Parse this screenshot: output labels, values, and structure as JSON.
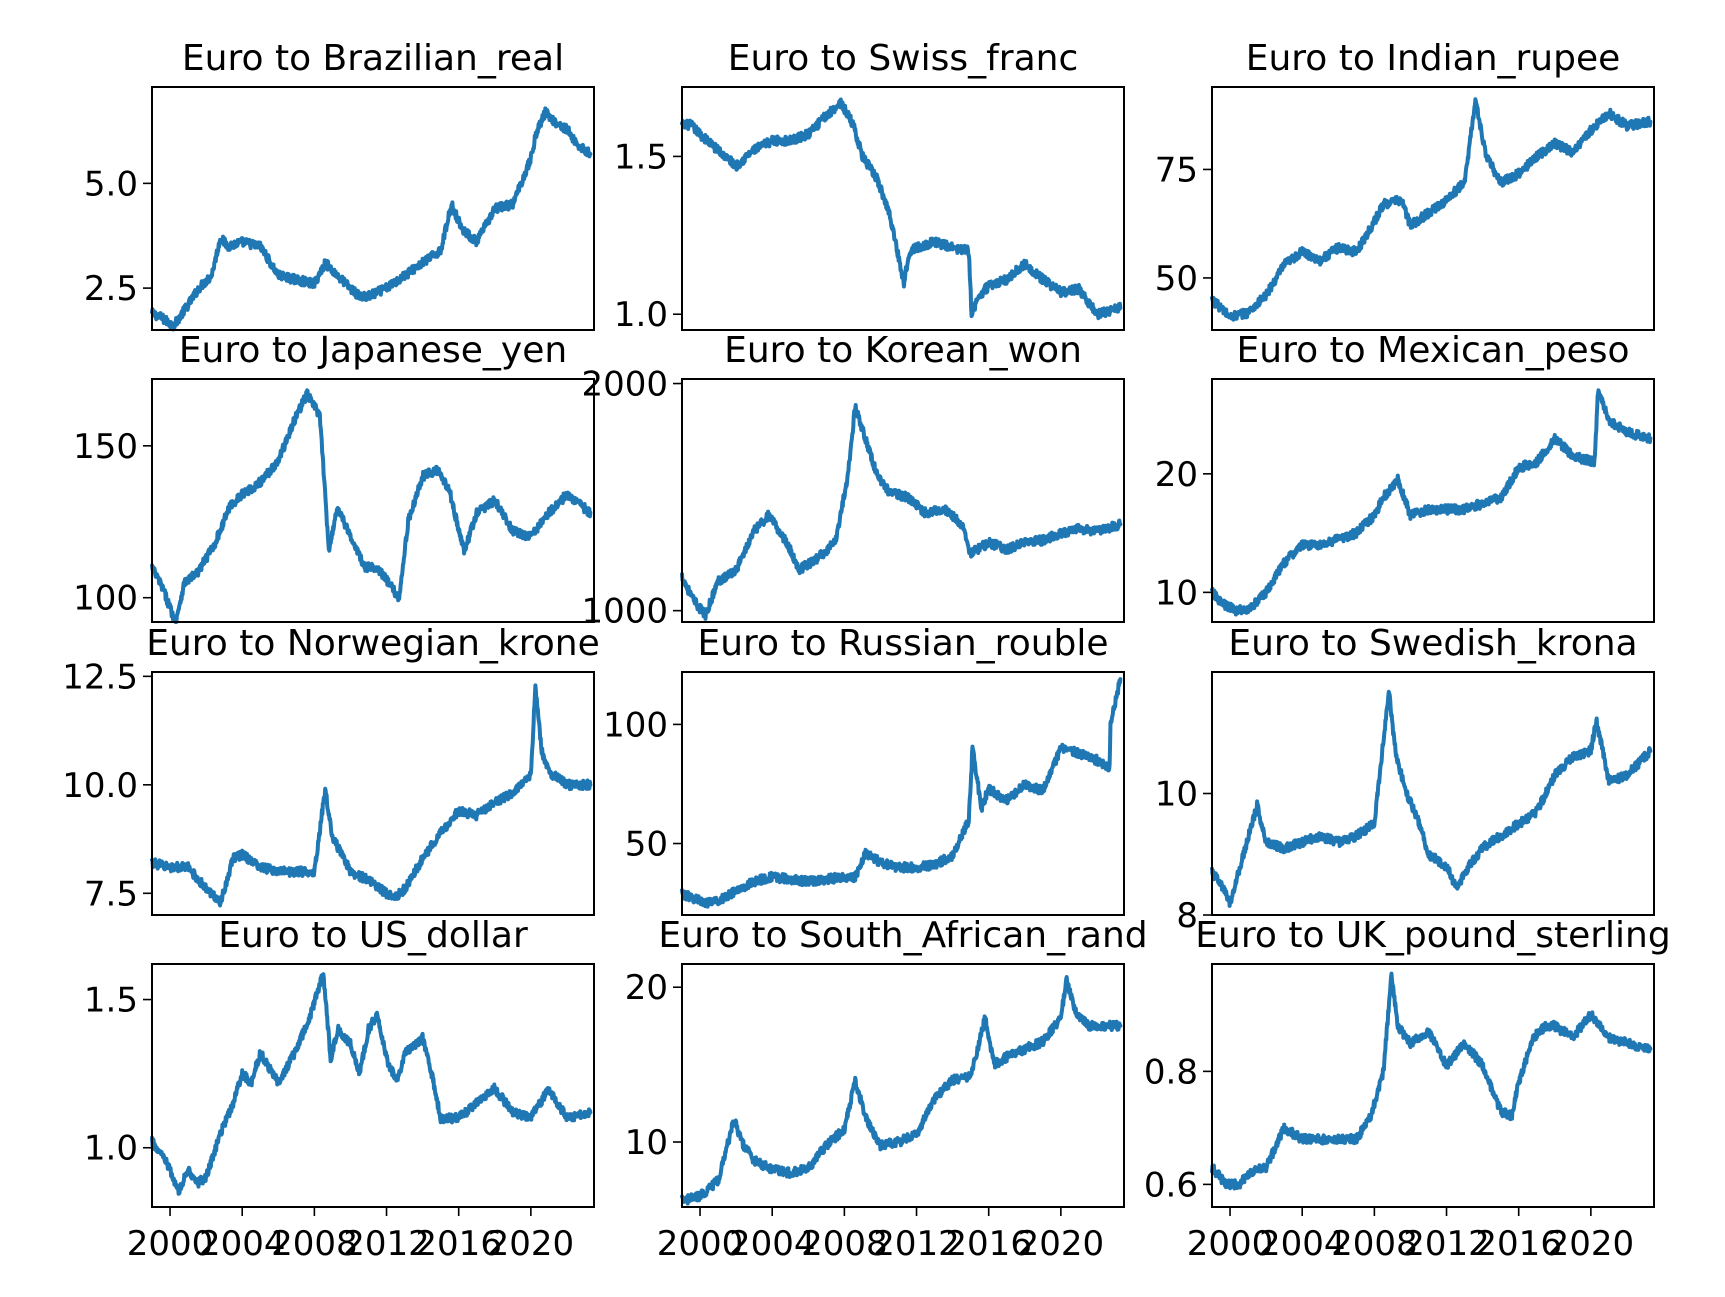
{
  "colors": {
    "series": "#1f77b4",
    "axes": "#000000",
    "background": "#ffffff"
  },
  "x_tick_labels": [
    "2000",
    "2004",
    "2008",
    "2012",
    "2016",
    "2020"
  ],
  "chart_data": [
    {
      "type": "line",
      "title": "Euro to Brazilian_real",
      "x_range": [
        1999,
        2023.5
      ],
      "ylim": [
        1.5,
        7.3
      ],
      "y_ticks": [
        2.5,
        5.0
      ],
      "y_tick_labels": [
        "2.5",
        "5.0"
      ],
      "show_x_ticks": false,
      "series": [
        {
          "x": [
            1999,
            1999.5,
            2000.2,
            2001,
            2001.6,
            2002.3,
            2002.8,
            2003.2,
            2004,
            2005,
            2006,
            2007,
            2008,
            2008.6,
            2009.5,
            2010.5,
            2011,
            2012,
            2013,
            2014,
            2015,
            2015.6,
            2016.2,
            2017,
            2018,
            2019,
            2020,
            2020.3,
            2020.8,
            2021.5,
            2022,
            2022.6,
            2023.3
          ],
          "y": [
            1.9,
            1.8,
            1.6,
            2.1,
            2.5,
            2.8,
            3.7,
            3.5,
            3.6,
            3.5,
            2.8,
            2.7,
            2.6,
            3.1,
            2.7,
            2.3,
            2.3,
            2.5,
            2.8,
            3.1,
            3.4,
            4.5,
            3.9,
            3.6,
            4.4,
            4.5,
            5.6,
            6.2,
            6.7,
            6.4,
            6.3,
            5.9,
            5.7
          ]
        }
      ]
    },
    {
      "type": "line",
      "title": "Euro to Swiss_franc",
      "x_range": [
        1999,
        2023.5
      ],
      "ylim": [
        0.95,
        1.72
      ],
      "y_ticks": [
        1.0,
        1.5
      ],
      "y_tick_labels": [
        "1.0",
        "1.5"
      ],
      "show_x_ticks": false,
      "series": [
        {
          "x": [
            1999,
            1999.5,
            2000,
            2001,
            2002,
            2003,
            2004,
            2005,
            2006,
            2007,
            2007.8,
            2008.5,
            2009,
            2009.8,
            2010.5,
            2011.3,
            2011.6,
            2012,
            2013,
            2014,
            2014.9,
            2015.05,
            2015.5,
            2016,
            2017,
            2018,
            2019,
            2020,
            2021,
            2022,
            2023.3
          ],
          "y": [
            1.6,
            1.6,
            1.57,
            1.52,
            1.47,
            1.52,
            1.55,
            1.55,
            1.57,
            1.63,
            1.67,
            1.6,
            1.5,
            1.43,
            1.32,
            1.1,
            1.2,
            1.21,
            1.23,
            1.21,
            1.2,
            1.0,
            1.06,
            1.09,
            1.11,
            1.16,
            1.11,
            1.07,
            1.08,
            1.0,
            1.02
          ]
        }
      ]
    },
    {
      "type": "line",
      "title": "Euro to Indian_rupee",
      "x_range": [
        1999,
        2023.5
      ],
      "ylim": [
        38,
        94
      ],
      "y_ticks": [
        50,
        75
      ],
      "y_tick_labels": [
        "50",
        "75"
      ],
      "show_x_ticks": false,
      "series": [
        {
          "x": [
            1999,
            1999.5,
            2000,
            2001,
            2002,
            2003,
            2004,
            2005,
            2006,
            2007,
            2008,
            2008.5,
            2009.5,
            2010,
            2011,
            2012,
            2013,
            2013.6,
            2014.2,
            2015,
            2016,
            2017,
            2018,
            2019,
            2020,
            2021,
            2022,
            2023.3
          ],
          "y": [
            45,
            43,
            41,
            42,
            46,
            53,
            56,
            54,
            57,
            56,
            63,
            67,
            68,
            62,
            65,
            68,
            72,
            91,
            78,
            72,
            74,
            78,
            81,
            79,
            84,
            88,
            85,
            86
          ]
        }
      ]
    },
    {
      "type": "line",
      "title": "Euro to Japanese_yen",
      "x_range": [
        1999,
        2023.5
      ],
      "ylim": [
        92,
        172
      ],
      "y_ticks": [
        100,
        150
      ],
      "y_tick_labels": [
        "100",
        "150"
      ],
      "show_x_ticks": false,
      "series": [
        {
          "x": [
            1999,
            1999.6,
            2000.3,
            2000.8,
            2001.5,
            2002.5,
            2003.3,
            2004,
            2005,
            2006,
            2007,
            2007.6,
            2008.3,
            2008.8,
            2009.3,
            2010,
            2010.8,
            2011.5,
            2012.2,
            2012.7,
            2013.2,
            2014,
            2014.8,
            2015.5,
            2016.3,
            2017,
            2018,
            2019,
            2020,
            2021,
            2022,
            2023.3
          ],
          "y": [
            110,
            103,
            92,
            105,
            108,
            118,
            130,
            134,
            138,
            145,
            160,
            167,
            160,
            116,
            130,
            120,
            110,
            110,
            104,
            100,
            125,
            140,
            142,
            135,
            115,
            128,
            132,
            122,
            120,
            128,
            134,
            128
          ]
        }
      ]
    },
    {
      "type": "line",
      "title": "Euro to Korean_won",
      "x_range": [
        1999,
        2023.5
      ],
      "ylim": [
        950,
        2020
      ],
      "y_ticks": [
        1000,
        2000
      ],
      "y_tick_labels": [
        "1000",
        "2000"
      ],
      "show_x_ticks": false,
      "series": [
        {
          "x": [
            1999,
            1999.6,
            2000.3,
            2001,
            2002,
            2003,
            2003.8,
            2004.8,
            2005.5,
            2006.5,
            2007.5,
            2008.2,
            2008.6,
            2009.2,
            2009.8,
            2010.5,
            2011.5,
            2012.5,
            2013.5,
            2014.5,
            2015,
            2016,
            2017,
            2018,
            2019,
            2020,
            2021,
            2022,
            2023.3
          ],
          "y": [
            1150,
            1050,
            980,
            1130,
            1180,
            1350,
            1420,
            1300,
            1180,
            1230,
            1300,
            1600,
            1900,
            1750,
            1600,
            1520,
            1500,
            1430,
            1450,
            1380,
            1250,
            1300,
            1270,
            1300,
            1310,
            1340,
            1360,
            1350,
            1380
          ]
        }
      ]
    },
    {
      "type": "line",
      "title": "Euro to Mexican_peso",
      "x_range": [
        1999,
        2023.5
      ],
      "ylim": [
        7.5,
        28
      ],
      "y_ticks": [
        10,
        20
      ],
      "y_tick_labels": [
        "10",
        "20"
      ],
      "show_x_ticks": false,
      "series": [
        {
          "x": [
            1999,
            1999.6,
            2000.3,
            2001,
            2002,
            2003,
            2004,
            2005,
            2006,
            2007,
            2008,
            2008.5,
            2009.3,
            2010,
            2011,
            2012,
            2013,
            2014,
            2015,
            2016,
            2017,
            2018,
            2019,
            2020.2,
            2020.4,
            2021,
            2022,
            2023.3
          ],
          "y": [
            10,
            9,
            8.5,
            8.5,
            10,
            12.5,
            14,
            14,
            14.5,
            15,
            16.5,
            18,
            19.5,
            16.5,
            17,
            17,
            17,
            17.5,
            18,
            20.5,
            21,
            23,
            21.5,
            21,
            27,
            24.5,
            23.5,
            23
          ]
        }
      ]
    },
    {
      "type": "line",
      "title": "Euro to Norwegian_krone",
      "x_range": [
        1999,
        2023.5
      ],
      "ylim": [
        7.0,
        12.6
      ],
      "y_ticks": [
        7.5,
        10.0,
        12.5
      ],
      "y_tick_labels": [
        "7.5",
        "10.0",
        "12.5"
      ],
      "show_x_ticks": false,
      "series": [
        {
          "x": [
            1999,
            2000,
            2001,
            2002,
            2002.8,
            2003.5,
            2004,
            2005,
            2006,
            2007,
            2008,
            2008.6,
            2009,
            2009.5,
            2010,
            2011,
            2012,
            2012.5,
            2013,
            2014,
            2015,
            2016,
            2017,
            2018,
            2019,
            2020,
            2020.25,
            2020.6,
            2021,
            2022,
            2023.3
          ],
          "y": [
            8.2,
            8.1,
            8.1,
            7.6,
            7.3,
            8.3,
            8.4,
            8.1,
            8.0,
            8.0,
            8.0,
            9.9,
            8.8,
            8.4,
            8.0,
            7.8,
            7.5,
            7.4,
            7.6,
            8.3,
            8.9,
            9.4,
            9.3,
            9.6,
            9.8,
            10.2,
            12.3,
            10.8,
            10.3,
            10.0,
            10.0
          ]
        }
      ]
    },
    {
      "type": "line",
      "title": "Euro to Russian_rouble",
      "x_range": [
        1999,
        2023.5
      ],
      "ylim": [
        20,
        122
      ],
      "y_ticks": [
        50,
        100
      ],
      "y_tick_labels": [
        "50",
        "100"
      ],
      "show_x_ticks": false,
      "series": [
        {
          "x": [
            1999,
            1999.6,
            2000.5,
            2001,
            2002,
            2003,
            2004,
            2005,
            2006,
            2007,
            2008,
            2008.6,
            2009.2,
            2010,
            2011,
            2012,
            2013,
            2014,
            2014.9,
            2015.1,
            2015.6,
            2016,
            2017,
            2018,
            2019,
            2020,
            2021,
            2022,
            2022.7,
            2022.75,
            2023.3
          ],
          "y": [
            29,
            27,
            25,
            26,
            30,
            34,
            36,
            35,
            34,
            35,
            36,
            36,
            46,
            42,
            40,
            40,
            41,
            45,
            60,
            90,
            65,
            73,
            68,
            75,
            72,
            90,
            88,
            85,
            82,
            100,
            119
          ]
        }
      ]
    },
    {
      "type": "line",
      "title": "Euro to Swedish_krona",
      "x_range": [
        1999,
        2023.5
      ],
      "ylim": [
        8.0,
        12.0
      ],
      "y_ticks": [
        8,
        10
      ],
      "y_tick_labels": [
        "8",
        "10"
      ],
      "show_x_ticks": false,
      "series": [
        {
          "x": [
            1999,
            1999.5,
            2000,
            2001.5,
            2002,
            2003,
            2004,
            2005,
            2006,
            2007,
            2008,
            2008.8,
            2009.2,
            2009.8,
            2010.5,
            2011,
            2012,
            2012.6,
            2013,
            2014,
            2015,
            2016,
            2017,
            2018,
            2019,
            2020,
            2020.3,
            2020.8,
            2021,
            2022,
            2023.3
          ],
          "y": [
            8.7,
            8.5,
            8.2,
            9.8,
            9.2,
            9.1,
            9.2,
            9.3,
            9.2,
            9.3,
            9.5,
            11.7,
            10.6,
            10.0,
            9.5,
            9.0,
            8.8,
            8.4,
            8.7,
            9.1,
            9.3,
            9.5,
            9.7,
            10.3,
            10.6,
            10.7,
            11.2,
            10.5,
            10.2,
            10.3,
            10.7
          ]
        }
      ]
    },
    {
      "type": "line",
      "title": "Euro to US_dollar",
      "x_range": [
        1999,
        2023.5
      ],
      "ylim": [
        0.8,
        1.62
      ],
      "y_ticks": [
        1.0,
        1.5
      ],
      "y_tick_labels": [
        "1.0",
        "1.5"
      ],
      "show_x_ticks": true,
      "x_ticks": [
        2000,
        2004,
        2008,
        2012,
        2016,
        2020
      ],
      "series": [
        {
          "x": [
            1999,
            1999.8,
            2000.5,
            2001,
            2001.5,
            2002,
            2002.8,
            2003.5,
            2004,
            2004.5,
            2005,
            2006,
            2007,
            2007.8,
            2008.5,
            2008.9,
            2009.3,
            2010,
            2010.5,
            2011,
            2011.5,
            2012,
            2012.6,
            2013,
            2014,
            2014.5,
            2015,
            2016,
            2017,
            2018,
            2019,
            2020,
            2021,
            2022,
            2023.3
          ],
          "y": [
            1.02,
            0.95,
            0.85,
            0.93,
            0.88,
            0.9,
            1.05,
            1.15,
            1.25,
            1.22,
            1.32,
            1.22,
            1.33,
            1.45,
            1.59,
            1.3,
            1.4,
            1.35,
            1.25,
            1.4,
            1.45,
            1.3,
            1.22,
            1.32,
            1.37,
            1.25,
            1.1,
            1.1,
            1.15,
            1.2,
            1.12,
            1.1,
            1.2,
            1.1,
            1.12
          ]
        }
      ]
    },
    {
      "type": "line",
      "title": "Euro to South_African_rand",
      "x_range": [
        1999,
        2023.5
      ],
      "ylim": [
        5.8,
        21.5
      ],
      "y_ticks": [
        10,
        20
      ],
      "y_tick_labels": [
        "10",
        "20"
      ],
      "show_x_ticks": true,
      "x_ticks": [
        2000,
        2004,
        2008,
        2012,
        2016,
        2020
      ],
      "series": [
        {
          "x": [
            1999,
            2000,
            2001,
            2001.9,
            2002.3,
            2003,
            2004,
            2005,
            2006,
            2007,
            2008,
            2008.6,
            2009.2,
            2010,
            2011,
            2012,
            2013,
            2014,
            2015,
            2015.8,
            2016.3,
            2017,
            2018,
            2019,
            2020,
            2020.3,
            2020.8,
            2021.5,
            2022,
            2023.3
          ],
          "y": [
            6.2,
            6.5,
            7.5,
            11.5,
            10,
            8.8,
            8.2,
            8.0,
            8.3,
            9.8,
            10.8,
            14.0,
            11.5,
            9.8,
            10.0,
            10.5,
            12.8,
            14.0,
            14.2,
            18.0,
            15.0,
            15.5,
            16.0,
            16.5,
            18.0,
            20.5,
            18.5,
            17.5,
            17.5,
            17.5
          ]
        }
      ]
    },
    {
      "type": "line",
      "title": "Euro to UK_pound_sterling",
      "x_range": [
        1999,
        2023.5
      ],
      "ylim": [
        0.56,
        0.99
      ],
      "y_ticks": [
        0.6,
        0.8
      ],
      "y_tick_labels": [
        "0.6",
        "0.8"
      ],
      "show_x_ticks": true,
      "x_ticks": [
        2000,
        2004,
        2008,
        2012,
        2016,
        2020
      ],
      "series": [
        {
          "x": [
            1999,
            1999.8,
            2000.5,
            2001,
            2002,
            2003,
            2003.5,
            2004,
            2005,
            2006,
            2007,
            2007.8,
            2008.5,
            2008.95,
            2009.3,
            2010,
            2011,
            2012,
            2013,
            2014,
            2015,
            2015.6,
            2016,
            2016.8,
            2017.5,
            2018,
            2019,
            2020,
            2021,
            2022,
            2023.3
          ],
          "y": [
            0.63,
            0.6,
            0.6,
            0.62,
            0.63,
            0.7,
            0.69,
            0.68,
            0.68,
            0.68,
            0.68,
            0.72,
            0.8,
            0.97,
            0.88,
            0.85,
            0.87,
            0.81,
            0.85,
            0.81,
            0.73,
            0.72,
            0.78,
            0.86,
            0.88,
            0.88,
            0.86,
            0.9,
            0.86,
            0.85,
            0.84
          ]
        }
      ]
    }
  ]
}
